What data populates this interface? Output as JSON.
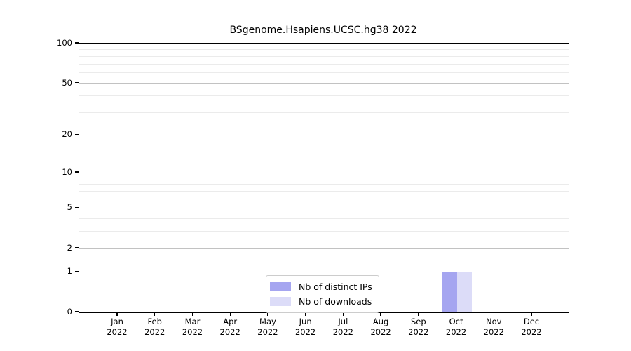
{
  "chart_data": {
    "type": "bar",
    "title": "BSgenome.Hsapiens.UCSC.hg38 2022",
    "categories": [
      "Jan",
      "Feb",
      "Mar",
      "Apr",
      "May",
      "Jun",
      "Jul",
      "Aug",
      "Sep",
      "Oct",
      "Nov",
      "Dec"
    ],
    "category_year": "2022",
    "series": [
      {
        "name": "Nb of distinct IPs",
        "color": "#a5a5f0",
        "values": [
          0,
          0,
          0,
          0,
          0,
          0,
          0,
          0,
          0,
          1,
          0,
          0
        ]
      },
      {
        "name": "Nb of downloads",
        "color": "#dcdcf8",
        "values": [
          0,
          0,
          0,
          0,
          0,
          0,
          0,
          0,
          0,
          1,
          0,
          0
        ]
      }
    ],
    "xlabel": "",
    "ylabel": "",
    "y_axis": {
      "scale": "log1p",
      "max": 100,
      "major_ticks": [
        0,
        1,
        2,
        5,
        10,
        20,
        50,
        100
      ],
      "minor_ticks": [
        3,
        4,
        6,
        7,
        8,
        9,
        30,
        40,
        60,
        70,
        80,
        90
      ]
    },
    "grid": true,
    "legend_position": "bottom-center"
  },
  "colors": {
    "bar_distinct_ips": "#a5a5f0",
    "bar_downloads": "#dcdcf8",
    "grid_major": "#c2c2c2",
    "grid_minor": "#ebebeb",
    "axis": "#000000",
    "legend_border": "#cccccc",
    "background": "#ffffff"
  }
}
